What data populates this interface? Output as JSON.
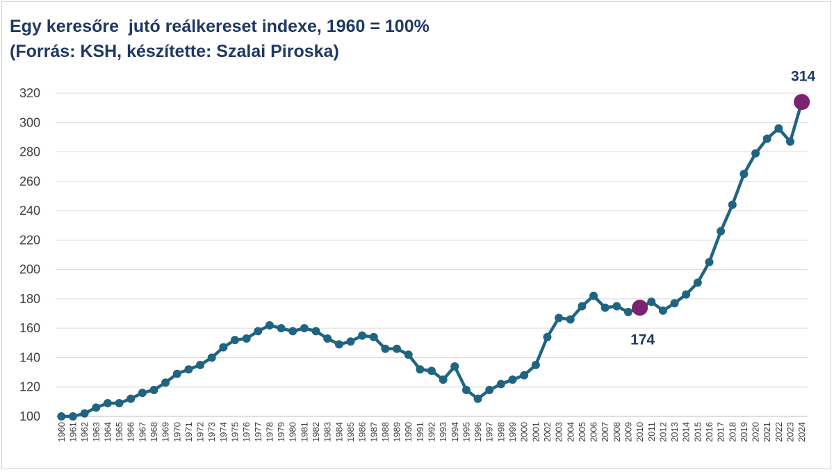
{
  "chart_data": {
    "type": "line",
    "title": "Egy keresőre  jutó reálkereset indexe, 1960 = 100%",
    "subtitle": "(Forrás: KSH, készítette: Szalai Piroska)",
    "xlabel": "",
    "ylabel": "",
    "ylim": [
      100,
      320
    ],
    "yticks": [
      "100",
      "120",
      "140",
      "160",
      "180",
      "200",
      "220",
      "240",
      "260",
      "280",
      "300",
      "320"
    ],
    "grid": true,
    "legend": "none",
    "colors": {
      "line": "#1f6581",
      "highlight": "#7b2270",
      "label": "#1f3864",
      "grid": "#d9d9d9"
    },
    "x": [
      "1960",
      "1961",
      "1962",
      "1963",
      "1964",
      "1965",
      "1966",
      "1967",
      "1968",
      "1969",
      "1970",
      "1971",
      "1972",
      "1973",
      "1974",
      "1975",
      "1976",
      "1977",
      "1978",
      "1979",
      "1980",
      "1981",
      "1982",
      "1983",
      "1984",
      "1985",
      "1986",
      "1987",
      "1988",
      "1989",
      "1990",
      "1991",
      "1992",
      "1993",
      "1994",
      "1995",
      "1996",
      "1997",
      "1998",
      "1999",
      "2000",
      "2001",
      "2002",
      "2003",
      "2004",
      "2005",
      "2006",
      "2007",
      "2008",
      "2009",
      "2010",
      "2011",
      "2012",
      "2013",
      "2014",
      "2015",
      "2016",
      "2017",
      "2018",
      "2019",
      "2020",
      "2021",
      "2022",
      "2023",
      "2024"
    ],
    "values": [
      100,
      100,
      102,
      106,
      109,
      109,
      112,
      116,
      118,
      123,
      129,
      132,
      135,
      140,
      147,
      152,
      153,
      158,
      162,
      160,
      158,
      160,
      158,
      153,
      149,
      151,
      155,
      154,
      146,
      146,
      142,
      132,
      131,
      125,
      134,
      118,
      112,
      118,
      122,
      125,
      128,
      135,
      154,
      167,
      166,
      175,
      182,
      174,
      175,
      171,
      174,
      178,
      172,
      177,
      183,
      191,
      205,
      226,
      244,
      265,
      279,
      289,
      296,
      287,
      314
    ],
    "highlights": [
      {
        "year": "2010",
        "value": 174,
        "label": "174"
      },
      {
        "year": "2024",
        "value": 314,
        "label": "314"
      }
    ]
  }
}
